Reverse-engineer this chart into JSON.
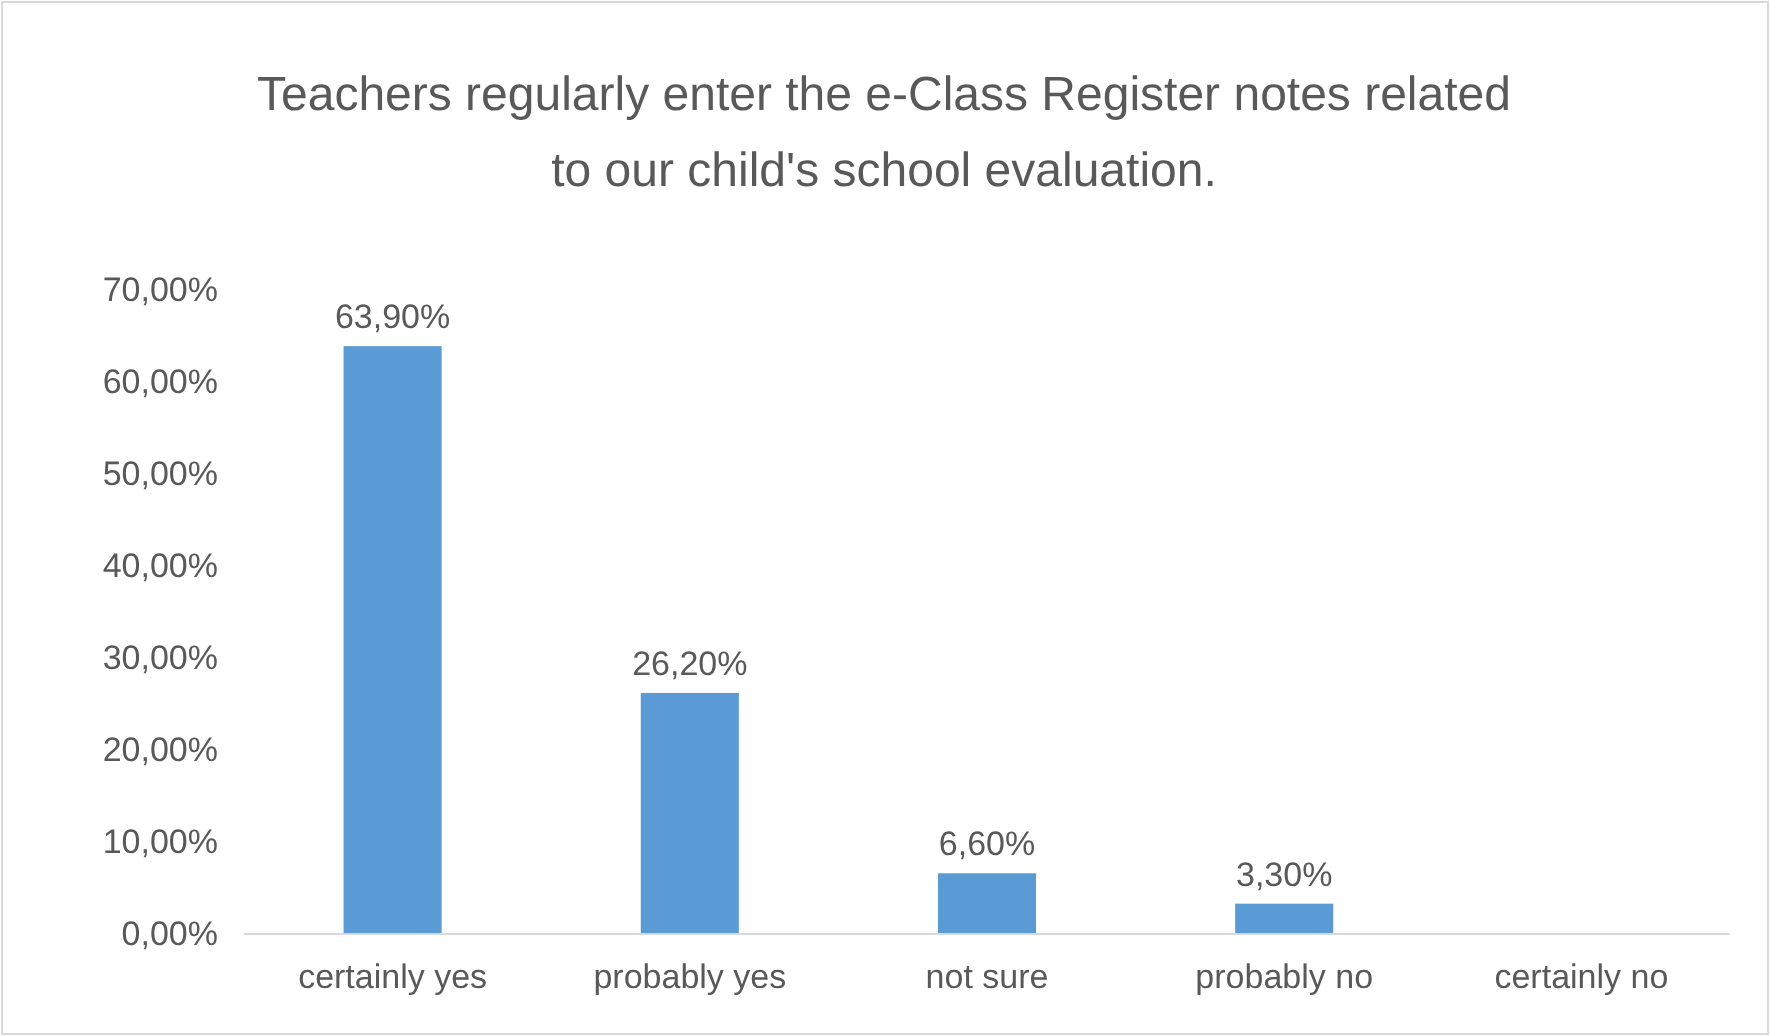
{
  "chart_data": {
    "type": "bar",
    "title": "Teachers regularly enter the e-Class Register notes related to our child's school evaluation.",
    "categories": [
      "certainly yes",
      "probably yes",
      "not sure",
      "probably no",
      "certainly no"
    ],
    "values": [
      63.9,
      26.2,
      6.6,
      3.3,
      0
    ],
    "value_labels": [
      "63,90%",
      "26,20%",
      "6,60%",
      "3,30%",
      null
    ],
    "color": "#5b9bd5",
    "ylim": [
      0,
      70
    ],
    "yticks": [
      {
        "value": 0,
        "label": "0,00%"
      },
      {
        "value": 10,
        "label": "10,00%"
      },
      {
        "value": 20,
        "label": "20,00%"
      },
      {
        "value": 30,
        "label": "30,00%"
      },
      {
        "value": 40,
        "label": "40,00%"
      },
      {
        "value": 50,
        "label": "50,00%"
      },
      {
        "value": 60,
        "label": "60,00%"
      },
      {
        "value": 70,
        "label": "70,00%"
      }
    ],
    "grid": false
  }
}
